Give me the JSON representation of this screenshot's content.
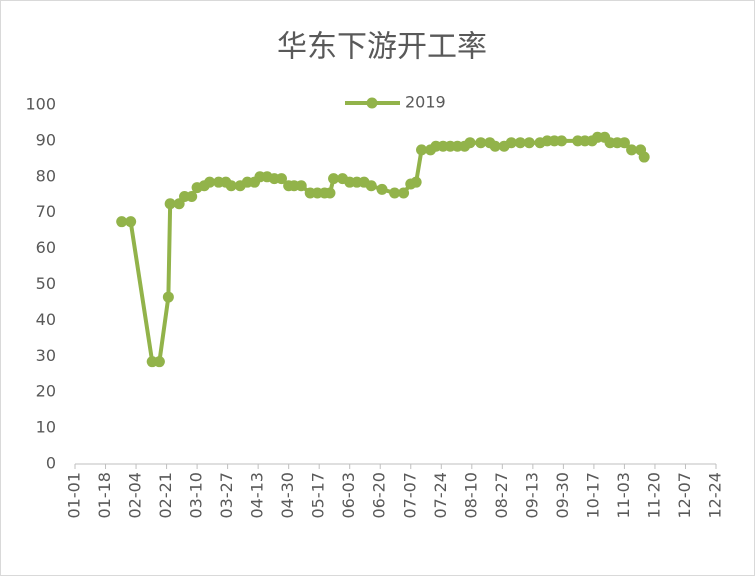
{
  "chart_data": {
    "type": "line",
    "title": "华东下游开工率",
    "x": [
      "01-27",
      "02-01",
      "02-13",
      "02-17",
      "02-22",
      "02-23",
      "02-28",
      "03-03",
      "03-07",
      "03-10",
      "03-14",
      "03-17",
      "03-22",
      "03-26",
      "03-29",
      "04-03",
      "04-07",
      "04-11",
      "04-14",
      "04-18",
      "04-22",
      "04-26",
      "04-30",
      "05-03",
      "05-07",
      "05-12",
      "05-16",
      "05-20",
      "05-23",
      "05-25",
      "05-30",
      "06-03",
      "06-07",
      "06-11",
      "06-15",
      "06-21",
      "06-28",
      "07-03",
      "07-07",
      "07-10",
      "07-13",
      "07-18",
      "07-21",
      "07-25",
      "07-29",
      "08-02",
      "08-06",
      "08-09",
      "08-15",
      "08-20",
      "08-23",
      "08-28",
      "09-01",
      "09-06",
      "09-11",
      "09-17",
      "09-21",
      "09-25",
      "09-29",
      "10-08",
      "10-12",
      "10-16",
      "10-19",
      "10-23",
      "10-26",
      "10-30",
      "11-03",
      "11-07",
      "11-12",
      "11-14"
    ],
    "series": [
      {
        "name": "2019",
        "color": "#92b34a",
        "values": [
          67.5,
          67.5,
          28.5,
          28.5,
          46.5,
          72.5,
          72.5,
          74.5,
          74.5,
          77,
          77.5,
          78.5,
          78.5,
          78.5,
          77.5,
          77.5,
          78.5,
          78.5,
          80,
          80,
          79.5,
          79.5,
          77.5,
          77.5,
          77.5,
          75.5,
          75.5,
          75.5,
          75.5,
          79.5,
          79.5,
          78.5,
          78.5,
          78.5,
          77.5,
          76.5,
          75.5,
          75.5,
          78,
          78.5,
          87.5,
          87.5,
          88.5,
          88.5,
          88.5,
          88.5,
          88.5,
          89.5,
          89.5,
          89.5,
          88.5,
          88.5,
          89.5,
          89.5,
          89.5,
          89.5,
          90,
          90,
          90,
          90,
          90,
          90,
          91,
          91,
          89.5,
          89.5,
          89.5,
          87.5,
          87.5,
          85.5
        ]
      }
    ],
    "xlim": [
      "01-01",
      "12-24"
    ],
    "xticks": [
      "01-01",
      "01-18",
      "02-04",
      "02-21",
      "03-10",
      "03-27",
      "04-13",
      "04-30",
      "05-17",
      "06-03",
      "06-20",
      "07-07",
      "07-24",
      "08-10",
      "08-27",
      "09-13",
      "09-30",
      "10-17",
      "11-03",
      "11-20",
      "12-07",
      "12-24"
    ],
    "ylim": [
      0,
      100
    ],
    "yticks": [
      0,
      10,
      20,
      30,
      40,
      50,
      60,
      70,
      80,
      90,
      100
    ],
    "grid": false,
    "legend": "top"
  }
}
